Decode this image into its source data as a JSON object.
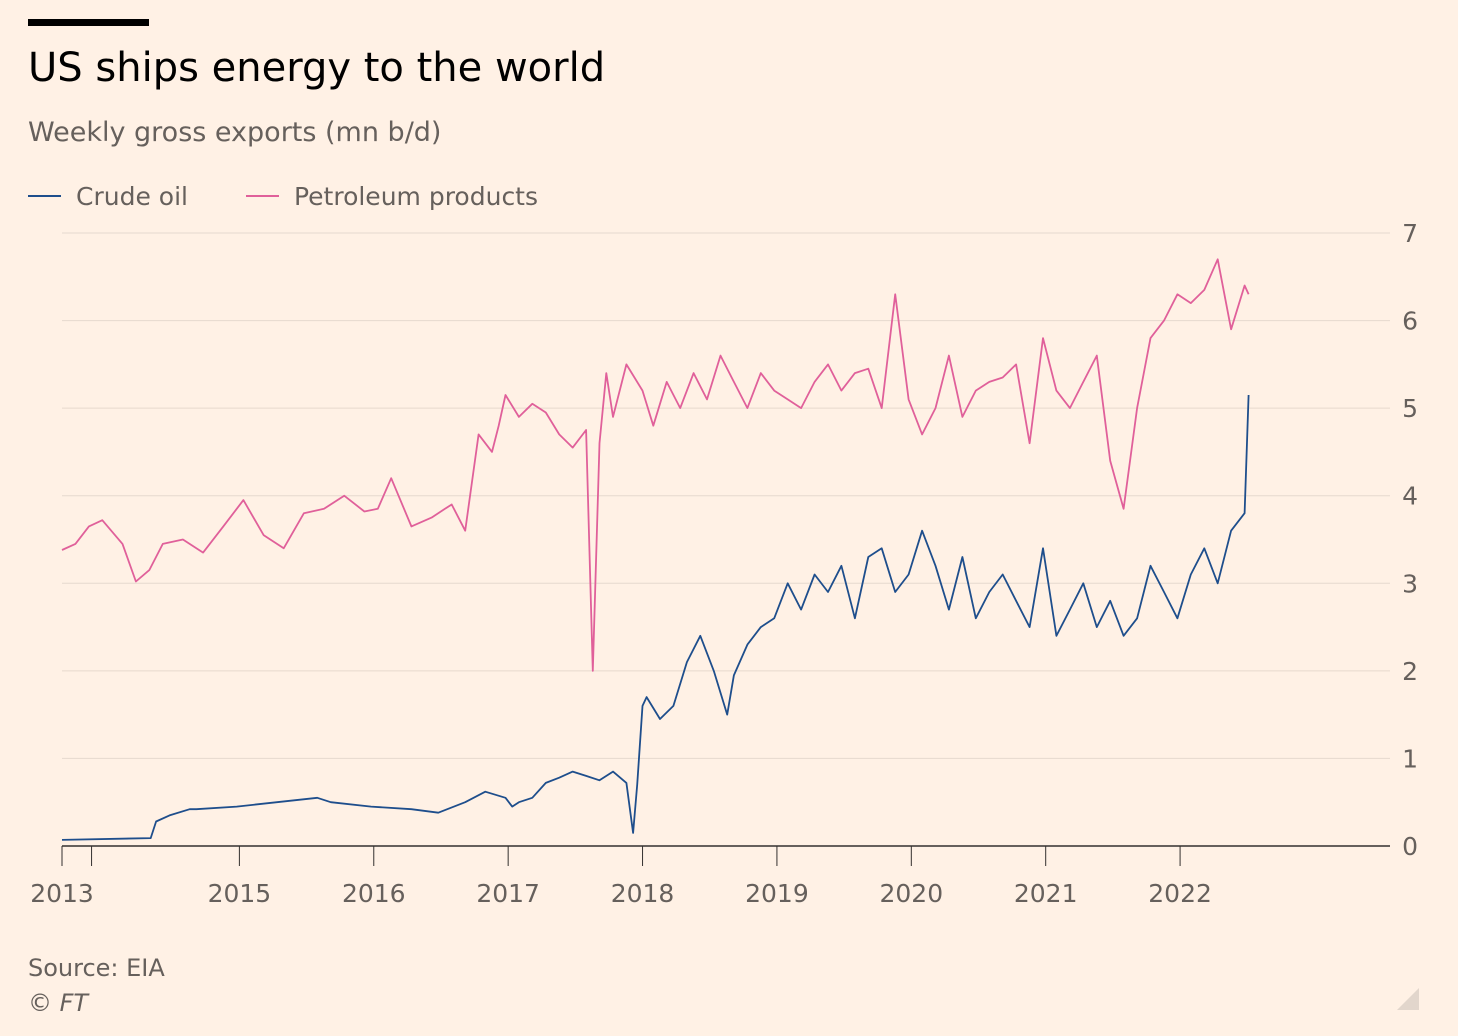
{
  "header": {
    "title": "US ships energy to the world",
    "subtitle": "Weekly gross exports (mn b/d)"
  },
  "legend": [
    {
      "label": "Crude oil",
      "color": "#1e4e8c"
    },
    {
      "label": "Petroleum products",
      "color": "#e0609a"
    }
  ],
  "footer": {
    "source": "Source: EIA",
    "copyright": "© FT"
  },
  "icons": {
    "resize": "resize-grip-icon"
  },
  "colors": {
    "background": "#fff1e5",
    "gridline": "#e6d9ce",
    "axis": "#33302e"
  },
  "chart_data": {
    "type": "line",
    "title": "US ships energy to the world",
    "subtitle": "Weekly gross exports (mn b/d)",
    "xlabel": "",
    "ylabel": "",
    "xlim": [
      2013.0,
      2022.83
    ],
    "ylim": [
      0,
      7
    ],
    "x_ticks": [
      {
        "x": 2013.0,
        "label": "2013"
      },
      {
        "x": 2013.22,
        "label": ""
      },
      {
        "x": 2014.32,
        "label": "2015"
      },
      {
        "x": 2015.32,
        "label": "2016"
      },
      {
        "x": 2016.32,
        "label": "2017"
      },
      {
        "x": 2017.32,
        "label": "2018"
      },
      {
        "x": 2018.32,
        "label": "2019"
      },
      {
        "x": 2019.32,
        "label": "2020"
      },
      {
        "x": 2020.32,
        "label": "2021"
      },
      {
        "x": 2021.32,
        "label": "2022"
      }
    ],
    "y_ticks": [
      0,
      1,
      2,
      3,
      4,
      5,
      6,
      7
    ],
    "grid": "horizontal",
    "legend_position": "top-left",
    "series": [
      {
        "name": "Crude oil",
        "color": "#1e4e8c",
        "x": [
          2013.0,
          2013.66,
          2013.7,
          2013.8,
          2013.95,
          2014.0,
          2014.3,
          2014.6,
          2014.9,
          2015.0,
          2015.3,
          2015.6,
          2015.8,
          2016.0,
          2016.15,
          2016.3,
          2016.35,
          2016.4,
          2016.5,
          2016.6,
          2016.7,
          2016.8,
          2016.9,
          2017.0,
          2017.1,
          2017.2,
          2017.25,
          2017.28,
          2017.32,
          2017.35,
          2017.45,
          2017.55,
          2017.65,
          2017.75,
          2017.85,
          2017.95,
          2018.0,
          2018.1,
          2018.2,
          2018.3,
          2018.4,
          2018.5,
          2018.6,
          2018.7,
          2018.8,
          2018.9,
          2019.0,
          2019.1,
          2019.2,
          2019.3,
          2019.4,
          2019.5,
          2019.6,
          2019.7,
          2019.8,
          2019.9,
          2020.0,
          2020.1,
          2020.2,
          2020.3,
          2020.4,
          2020.5,
          2020.6,
          2020.7,
          2020.8,
          2020.9,
          2021.0,
          2021.1,
          2021.2,
          2021.3,
          2021.4,
          2021.5,
          2021.6,
          2021.7,
          2021.8,
          2021.83
        ],
        "values": [
          0.07,
          0.09,
          0.28,
          0.35,
          0.42,
          0.42,
          0.45,
          0.5,
          0.55,
          0.5,
          0.45,
          0.42,
          0.38,
          0.5,
          0.62,
          0.55,
          0.45,
          0.5,
          0.55,
          0.72,
          0.78,
          0.85,
          0.8,
          0.75,
          0.85,
          0.72,
          0.15,
          0.7,
          1.6,
          1.7,
          1.45,
          1.6,
          2.1,
          2.4,
          2.0,
          1.5,
          1.95,
          2.3,
          2.5,
          2.6,
          3.0,
          2.7,
          3.1,
          2.9,
          3.2,
          2.6,
          3.3,
          3.4,
          2.9,
          3.1,
          3.6,
          3.2,
          2.7,
          3.3,
          2.6,
          2.9,
          3.1,
          2.8,
          2.5,
          3.4,
          2.4,
          2.7,
          3.0,
          2.5,
          2.8,
          2.4,
          2.6,
          3.2,
          2.9,
          2.6,
          3.1,
          3.4,
          3.0,
          3.6,
          3.8,
          5.15
        ]
      },
      {
        "name": "Petroleum products",
        "color": "#e0609a",
        "x": [
          2013.0,
          2013.1,
          2013.2,
          2013.3,
          2013.45,
          2013.55,
          2013.65,
          2013.75,
          2013.9,
          2014.05,
          2014.2,
          2014.35,
          2014.5,
          2014.65,
          2014.8,
          2014.95,
          2015.1,
          2015.25,
          2015.35,
          2015.45,
          2015.6,
          2015.75,
          2015.85,
          2015.9,
          2016.0,
          2016.1,
          2016.2,
          2016.25,
          2016.3,
          2016.4,
          2016.5,
          2016.6,
          2016.7,
          2016.8,
          2016.9,
          2016.95,
          2017.0,
          2017.05,
          2017.1,
          2017.2,
          2017.32,
          2017.4,
          2017.5,
          2017.6,
          2017.7,
          2017.8,
          2017.9,
          2018.0,
          2018.1,
          2018.2,
          2018.3,
          2018.4,
          2018.5,
          2018.6,
          2018.7,
          2018.8,
          2018.9,
          2019.0,
          2019.1,
          2019.2,
          2019.3,
          2019.4,
          2019.5,
          2019.6,
          2019.7,
          2019.8,
          2019.9,
          2020.0,
          2020.1,
          2020.2,
          2020.3,
          2020.4,
          2020.5,
          2020.6,
          2020.7,
          2020.8,
          2020.9,
          2021.0,
          2021.1,
          2021.2,
          2021.3,
          2021.4,
          2021.5,
          2021.6,
          2021.7,
          2021.8,
          2021.83
        ],
        "values": [
          3.38,
          3.45,
          3.65,
          3.72,
          3.45,
          3.02,
          3.15,
          3.45,
          3.5,
          3.35,
          3.65,
          3.95,
          3.55,
          3.4,
          3.8,
          3.85,
          4.0,
          3.82,
          3.85,
          4.2,
          3.65,
          3.75,
          3.85,
          3.9,
          3.6,
          4.7,
          4.5,
          4.8,
          5.15,
          4.9,
          5.05,
          4.95,
          4.7,
          4.55,
          4.75,
          2.0,
          4.6,
          5.4,
          4.9,
          5.5,
          5.2,
          4.8,
          5.3,
          5.0,
          5.4,
          5.1,
          5.6,
          5.3,
          5.0,
          5.4,
          5.2,
          5.1,
          5.0,
          5.3,
          5.5,
          5.2,
          5.4,
          5.45,
          5.0,
          6.3,
          5.1,
          4.7,
          5.0,
          5.6,
          4.9,
          5.2,
          5.3,
          5.35,
          5.5,
          4.6,
          5.8,
          5.2,
          5.0,
          5.3,
          5.6,
          4.4,
          3.85,
          5.0,
          5.8,
          6.0,
          6.3,
          6.2,
          6.35,
          6.7,
          5.9,
          6.4,
          6.3
        ]
      }
    ]
  }
}
